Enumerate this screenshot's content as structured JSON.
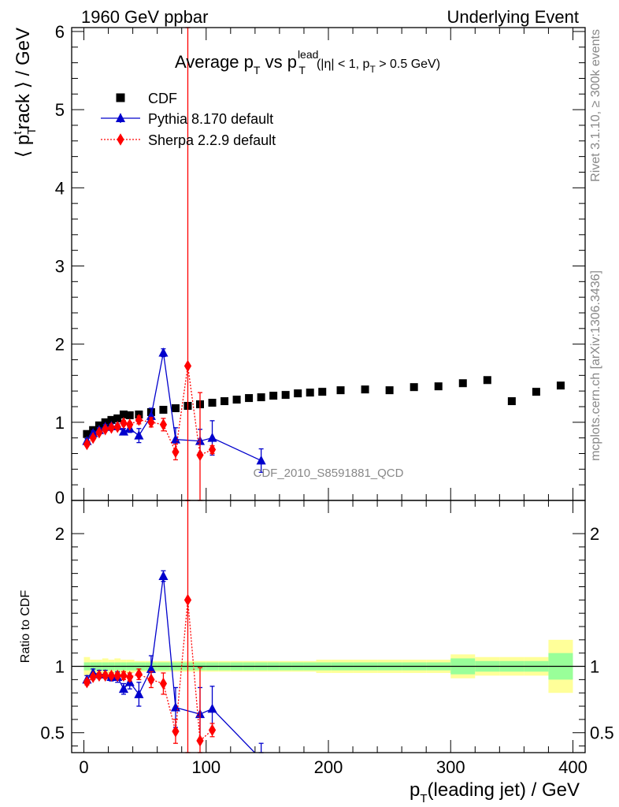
{
  "header": {
    "left": "1960 GeV ppbar",
    "right": "Underlying Event"
  },
  "side": {
    "rivet": "Rivet 3.1.10, ≥ 300k events",
    "mcplots": "mcplots.cern.ch [arXiv:1306.3436]"
  },
  "chart_data": {
    "type": "scatter",
    "title": {
      "main": "Average p",
      "sub1": "T",
      "mid": " vs p",
      "sup2": "lead",
      "sub2": "T",
      "cut_a": "(|η| < 1, p",
      "cut_sub": "T",
      "cut_b": " > 0.5 GeV)"
    },
    "watermark": "CDF_2010_S8591881_QCD",
    "xlabel": {
      "main": "p",
      "sub": "T",
      "rest": "(leading jet) / GeV"
    },
    "ylabel": {
      "pre": "⟨ p",
      "sub": "T",
      "sup": "t",
      "rest": "rack ⟩ / GeV"
    },
    "ratio_ylabel": "Ratio to CDF",
    "xlim": [
      -10,
      410
    ],
    "ylim": [
      0,
      6.05
    ],
    "ratio_ylim": [
      0.35,
      2.25
    ],
    "x_ticks": [
      "0",
      "100",
      "200",
      "300",
      "400"
    ],
    "x_tick_values": [
      0,
      100,
      200,
      300,
      400
    ],
    "y_ticks": [
      "0",
      "1",
      "2",
      "3",
      "4",
      "5",
      "6"
    ],
    "y_tick_values": [
      0,
      1,
      2,
      3,
      4,
      5,
      6
    ],
    "ratio_ticks": [
      "0.5",
      "1",
      "2"
    ],
    "ratio_tick_values": [
      0.5,
      1,
      2
    ],
    "legend_position": "top-left",
    "series": [
      {
        "name": "CDF",
        "color": "#000000",
        "marker": "square",
        "x": [
          2.5,
          7.5,
          12.5,
          17.5,
          22.5,
          27.5,
          32.5,
          37.5,
          45,
          55,
          65,
          75,
          85,
          95,
          105,
          115,
          125,
          135,
          145,
          155,
          165,
          175,
          185,
          195,
          210,
          230,
          250,
          270,
          290,
          310,
          330,
          350,
          370,
          390
        ],
        "y": [
          0.85,
          0.9,
          0.96,
          1.0,
          1.03,
          1.05,
          1.1,
          1.09,
          1.1,
          1.13,
          1.16,
          1.18,
          1.21,
          1.23,
          1.25,
          1.27,
          1.29,
          1.31,
          1.32,
          1.34,
          1.35,
          1.37,
          1.38,
          1.39,
          1.41,
          1.42,
          1.41,
          1.45,
          1.46,
          1.5,
          1.54,
          1.27,
          1.39,
          1.47
        ],
        "stat_ratio_err": [
          0.03,
          0.03,
          0.03,
          0.03,
          0.03,
          0.03,
          0.03,
          0.03,
          0.03,
          0.03,
          0.03,
          0.03,
          0.03,
          0.03,
          0.03,
          0.03,
          0.03,
          0.03,
          0.03,
          0.03,
          0.03,
          0.03,
          0.03,
          0.03,
          0.03,
          0.03,
          0.03,
          0.03,
          0.03,
          0.06,
          0.04,
          0.04,
          0.04,
          0.1
        ],
        "total_ratio_err": [
          0.07,
          0.05,
          0.05,
          0.06,
          0.05,
          0.06,
          0.05,
          0.05,
          0.04,
          0.04,
          0.04,
          0.04,
          0.04,
          0.04,
          0.04,
          0.04,
          0.04,
          0.04,
          0.04,
          0.04,
          0.04,
          0.04,
          0.04,
          0.05,
          0.05,
          0.05,
          0.05,
          0.05,
          0.05,
          0.09,
          0.07,
          0.07,
          0.07,
          0.2
        ]
      },
      {
        "name": "Pythia 8.170 default",
        "color": "#0000cc",
        "marker": "triangle",
        "line": "solid",
        "x": [
          2.5,
          7.5,
          12.5,
          17.5,
          22.5,
          27.5,
          32.5,
          37.5,
          45,
          55,
          65,
          75,
          95,
          105,
          145
        ],
        "y": [
          0.76,
          0.86,
          0.9,
          0.94,
          0.95,
          0.95,
          0.88,
          0.92,
          0.83,
          1.08,
          1.89,
          0.78,
          0.76,
          0.8,
          0.51
        ],
        "yerr": [
          0.03,
          0.03,
          0.03,
          0.03,
          0.03,
          0.03,
          0.04,
          0.05,
          0.09,
          0.1,
          0.05,
          0.15,
          0.15,
          0.22,
          0.15
        ],
        "ratio": [
          0.9,
          0.95,
          0.94,
          0.94,
          0.92,
          0.92,
          0.83,
          0.88,
          0.79,
          0.98,
          1.68,
          0.69,
          0.64,
          0.68,
          0.3
        ],
        "ratio_err": [
          0.03,
          0.03,
          0.03,
          0.03,
          0.03,
          0.04,
          0.04,
          0.05,
          0.09,
          0.1,
          0.04,
          0.15,
          0.2,
          0.17,
          0.12
        ]
      },
      {
        "name": "Sherpa 2.2.9 default",
        "color": "#ff0000",
        "marker": "diamond",
        "line": "dotted",
        "x": [
          2.5,
          7.5,
          12.5,
          17.5,
          22.5,
          27.5,
          32.5,
          37.5,
          45,
          55,
          65,
          75,
          85,
          95,
          105
        ],
        "y": [
          0.72,
          0.8,
          0.87,
          0.91,
          0.93,
          0.94,
          0.99,
          0.97,
          1.03,
          1.0,
          0.97,
          0.62,
          1.72,
          0.58,
          0.65
        ],
        "yerr": [
          0.02,
          0.02,
          0.02,
          0.02,
          0.02,
          0.02,
          0.03,
          0.03,
          0.05,
          0.06,
          0.08,
          0.1,
          4.5,
          0.8,
          0.05
        ],
        "ratio": [
          0.88,
          0.92,
          0.93,
          0.93,
          0.93,
          0.93,
          0.93,
          0.92,
          0.94,
          0.9,
          0.87,
          0.51,
          1.5,
          0.44,
          0.52
        ],
        "ratio_err": [
          0.02,
          0.02,
          0.02,
          0.02,
          0.02,
          0.02,
          0.03,
          0.03,
          0.04,
          0.06,
          0.08,
          0.09,
          3.0,
          0.55,
          0.05
        ]
      }
    ]
  }
}
